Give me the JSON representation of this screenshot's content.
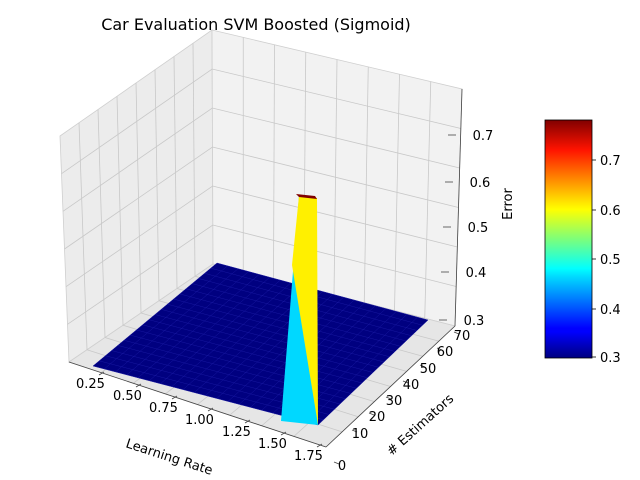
{
  "chart_data": {
    "type": "surface3d",
    "title": "Car Evaluation SVM Boosted (Sigmoid)",
    "xlabel": "Learning Rate",
    "ylabel": "# Estimators",
    "zlabel": "Error",
    "x_ticks": [
      "0.25",
      "0.50",
      "0.75",
      "1.00",
      "1.25",
      "1.50",
      "1.75"
    ],
    "y_ticks": [
      "0",
      "10",
      "20",
      "30",
      "40",
      "50",
      "60",
      "70"
    ],
    "z_ticks": [
      "0.3",
      "0.4",
      "0.5",
      "0.6",
      "0.7"
    ],
    "xlim": [
      0.1,
      2.0
    ],
    "ylim": [
      0,
      75
    ],
    "zlim": [
      0.29,
      0.78
    ],
    "surface": {
      "baseline_error": 0.3,
      "spike": {
        "learning_rate": 1.9,
        "estimators": [
          65,
          70
        ],
        "peak_error": 0.77
      }
    },
    "colorbar": {
      "colormap": "jet",
      "range": [
        0.29,
        0.77
      ],
      "ticks": [
        "0.3",
        "0.4",
        "0.5",
        "0.6",
        "0.7"
      ]
    },
    "grid": true
  },
  "colors": {
    "plane_fill": "#000080",
    "spike_front": "#00d8ff",
    "spike_side": "#fff000",
    "spike_top": "#800000"
  }
}
